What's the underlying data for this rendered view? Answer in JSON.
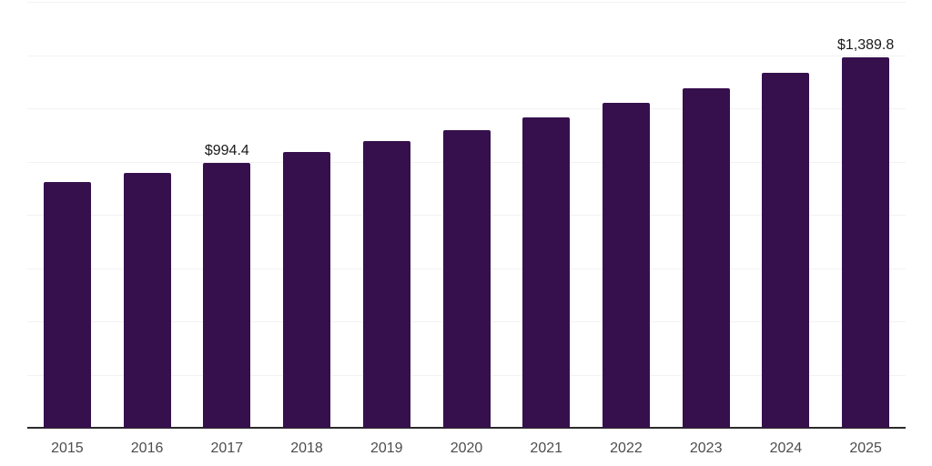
{
  "chart_data": {
    "type": "bar",
    "title": "",
    "xlabel": "",
    "ylabel": "",
    "categories": [
      "2015",
      "2016",
      "2017",
      "2018",
      "2019",
      "2020",
      "2021",
      "2022",
      "2023",
      "2024",
      "2025"
    ],
    "values": [
      922,
      957,
      994.4,
      1035,
      1076,
      1118,
      1167,
      1220,
      1275,
      1333,
      1389.8
    ],
    "data_labels": [
      "",
      "",
      "$994.4",
      "",
      "",
      "",
      "",
      "",
      "",
      "",
      "$1,389.8"
    ],
    "ylim": [
      0,
      1600
    ],
    "gridline_step": 200,
    "grid": "horizontal",
    "legend": "none",
    "y_axis_tick_labels_visible": false,
    "colors": {
      "bar": "#36104d",
      "gridline": "#f2f2f2",
      "axis_line": "#2b2b2b",
      "data_label_text": "#1a1a1a",
      "tick_label_text": "#4d4d4d",
      "background": "#ffffff"
    }
  }
}
